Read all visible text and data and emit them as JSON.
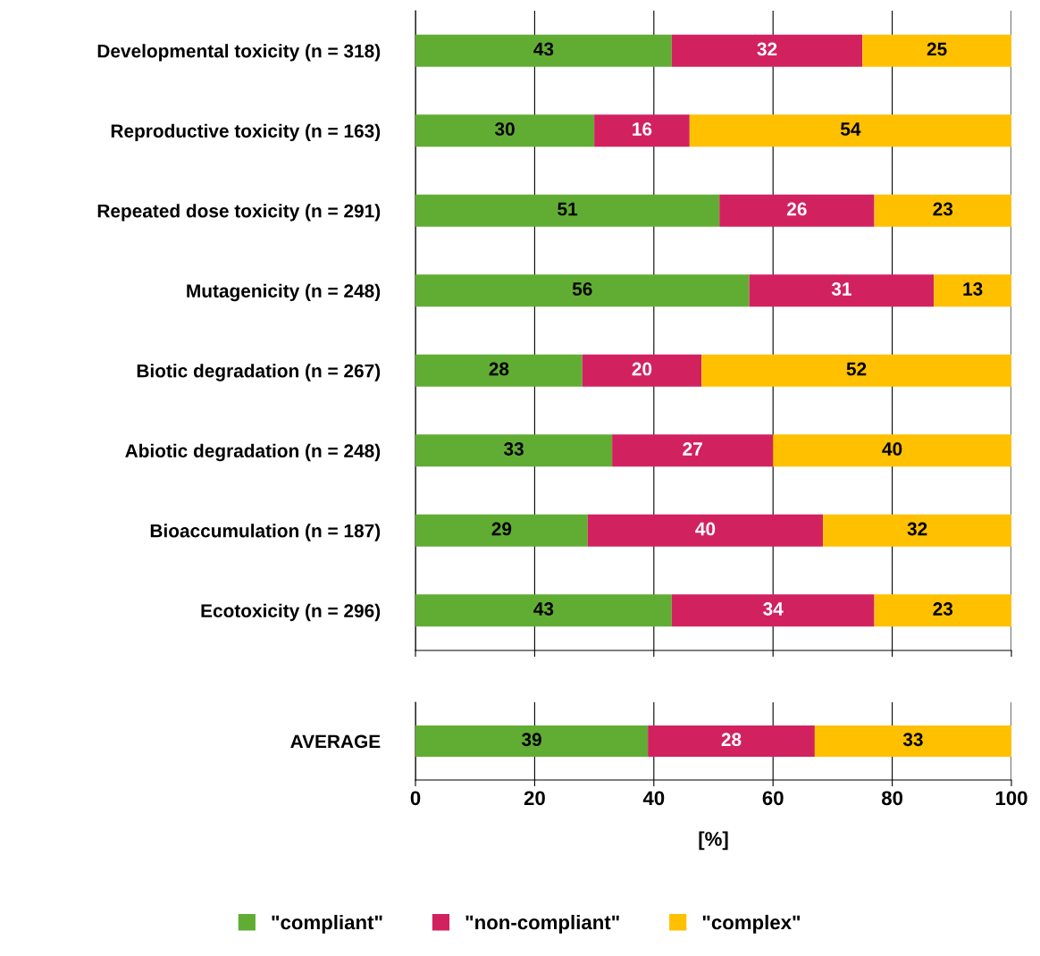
{
  "chart_data": [
    {
      "type": "bar",
      "orientation": "horizontal",
      "stacked": true,
      "grid": "x",
      "tick_labels": "y",
      "legend": "bottom",
      "categories": [
        "Developmental toxicity (n = 318)",
        "Reproductive toxicity (n = 163)",
        "Repeated dose toxicity (n = 291)",
        "Mutagenicity (n = 248)",
        "Biotic degradation (n = 267)",
        "Abiotic degradation (n = 248)",
        "Bioaccumulation (n = 187)",
        "Ecotoxicity (n = 296)"
      ],
      "xlim": [
        0,
        100
      ],
      "xticks": [
        0,
        20,
        40,
        60,
        80,
        100
      ],
      "series": [
        {
          "name": "\"compliant\"",
          "color": "#61ad34",
          "values": [
            43,
            30,
            51,
            56,
            28,
            33,
            28.9,
            43
          ],
          "value_labels": [
            "43",
            "30",
            "51",
            "56",
            "28",
            "33",
            "29",
            "43"
          ]
        },
        {
          "name": "\"non-compliant\"",
          "color": "#d1225f",
          "values": [
            32,
            16,
            26,
            31,
            20,
            27,
            39.5,
            34
          ],
          "value_labels": [
            "32",
            "16",
            "26",
            "31",
            "20",
            "27",
            "40",
            "34"
          ]
        },
        {
          "name": "\"complex\"",
          "color": "#ffc000",
          "values": [
            25,
            54,
            23,
            13,
            52,
            40,
            31.6,
            23
          ],
          "value_labels": [
            "25",
            "54",
            "23",
            "13",
            "52",
            "40",
            "32",
            "23"
          ]
        }
      ]
    },
    {
      "type": "bar",
      "orientation": "horizontal",
      "stacked": true,
      "data_labels": true,
      "grid": "x",
      "categories": [
        "AVERAGE"
      ],
      "xlim": [
        0,
        100
      ],
      "xticks": [
        0,
        20,
        40,
        60,
        80,
        100
      ],
      "xlabel": "[%]",
      "series": [
        {
          "color": "#61ad34",
          "values": [
            39
          ]
        },
        {
          "color": "#d1225f",
          "values": [
            28
          ]
        },
        {
          "color": "#ffc000",
          "values": [
            33
          ]
        }
      ]
    }
  ]
}
